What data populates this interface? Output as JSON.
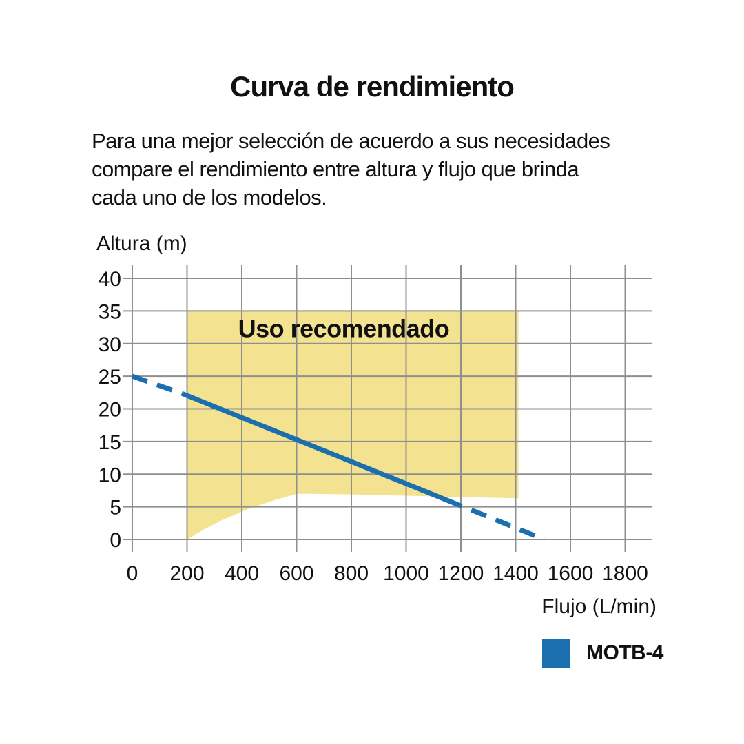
{
  "page": {
    "title": "Curva de rendimiento",
    "description_lines": [
      "Para una mejor selección de acuerdo a sus necesidades",
      "compare el rendimiento entre altura y flujo que brinda",
      "cada uno de los modelos."
    ]
  },
  "chart_data": {
    "type": "line",
    "title": "Curva de rendimiento",
    "xlabel": "Flujo (L/min)",
    "ylabel": "Altura (m)",
    "xlim": [
      0,
      1800
    ],
    "ylim": [
      0,
      40
    ],
    "xticks": [
      0,
      200,
      400,
      600,
      800,
      1000,
      1200,
      1400,
      1600,
      1800
    ],
    "yticks": [
      0,
      5,
      10,
      15,
      20,
      25,
      30,
      35,
      40
    ],
    "grid": true,
    "legend_position": "bottom-right",
    "colors": {
      "line": "#1b6fae",
      "zone": "#f3e28f",
      "grid": "#8f8f8f",
      "text": "#111111"
    },
    "recommended_zone": {
      "label": "Uso recomendado",
      "label_pos": [
        772,
        31
      ],
      "polygon": [
        [
          200,
          0
        ],
        [
          200,
          35
        ],
        [
          1410,
          35
        ],
        [
          1410,
          6.3
        ],
        [
          1200,
          6.5
        ],
        [
          1000,
          6.7
        ],
        [
          800,
          6.9
        ],
        [
          650,
          7.0
        ],
        [
          600,
          7.0
        ],
        [
          510,
          5.9
        ],
        [
          420,
          4.6
        ],
        [
          330,
          3.0
        ],
        [
          260,
          1.5
        ],
        [
          200,
          0
        ]
      ]
    },
    "series": [
      {
        "name": "MOTB-4",
        "color": "#1b6fae",
        "segments": [
          {
            "style": "dashed",
            "points": [
              [
                0,
                25
              ],
              [
                185,
                22.3
              ]
            ]
          },
          {
            "style": "solid",
            "points": [
              [
                185,
                22.3
              ],
              [
                1150,
                6.0
              ]
            ]
          },
          {
            "style": "dashed",
            "points": [
              [
                1150,
                6.0
              ],
              [
                1505,
                0
              ]
            ]
          }
        ]
      }
    ],
    "legend": [
      {
        "label": "MOTB-4",
        "color": "#1b6fae"
      }
    ]
  }
}
